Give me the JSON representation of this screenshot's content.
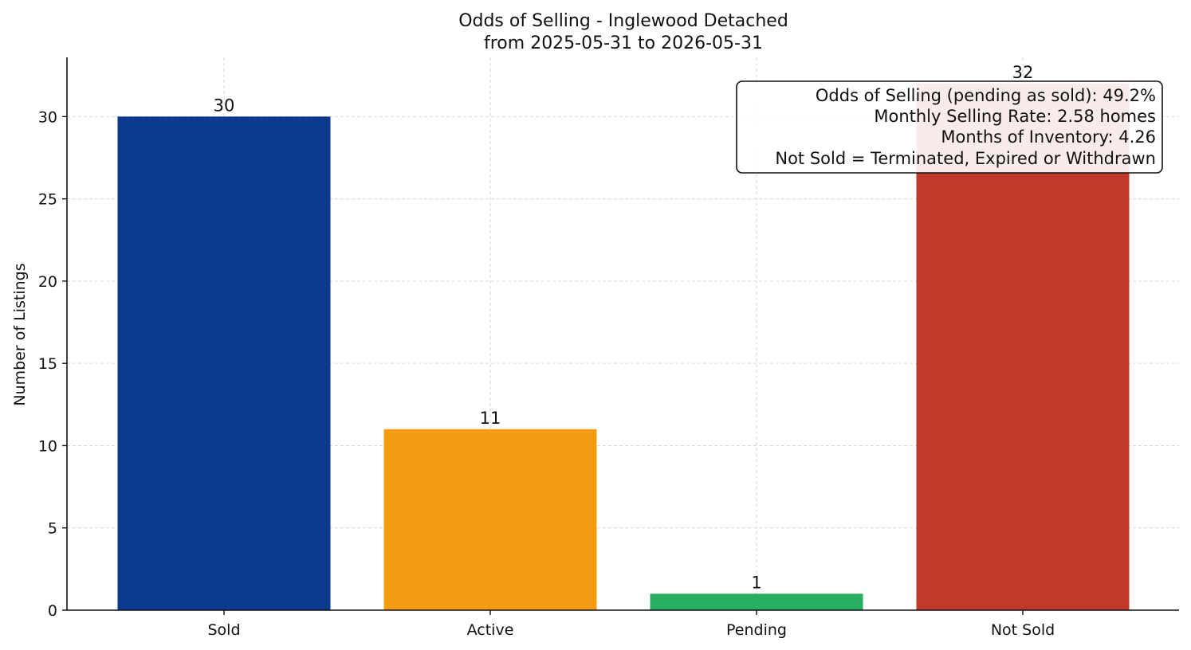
{
  "chart_data": {
    "type": "bar",
    "title": "Odds of Selling - Inglewood Detached",
    "subtitle": "from 2025-05-31 to 2026-05-31",
    "xlabel": "",
    "ylabel": "Number of Listings",
    "categories": [
      "Sold",
      "Active",
      "Pending",
      "Not Sold"
    ],
    "values": [
      30,
      11,
      1,
      32
    ],
    "colors": [
      "#0b3a8c",
      "#f39c12",
      "#27ae60",
      "#c0392b"
    ],
    "ylim": [
      0,
      33.6
    ],
    "yticks": [
      0,
      5,
      10,
      15,
      20,
      25,
      30
    ],
    "grid": true,
    "annotation": {
      "placement": "top-right",
      "lines": [
        "Odds of Selling (pending as sold): 49.2%",
        "Monthly Selling Rate: 2.58 homes",
        "Months of Inventory: 4.26",
        "Not Sold = Terminated, Expired or Withdrawn"
      ]
    }
  }
}
